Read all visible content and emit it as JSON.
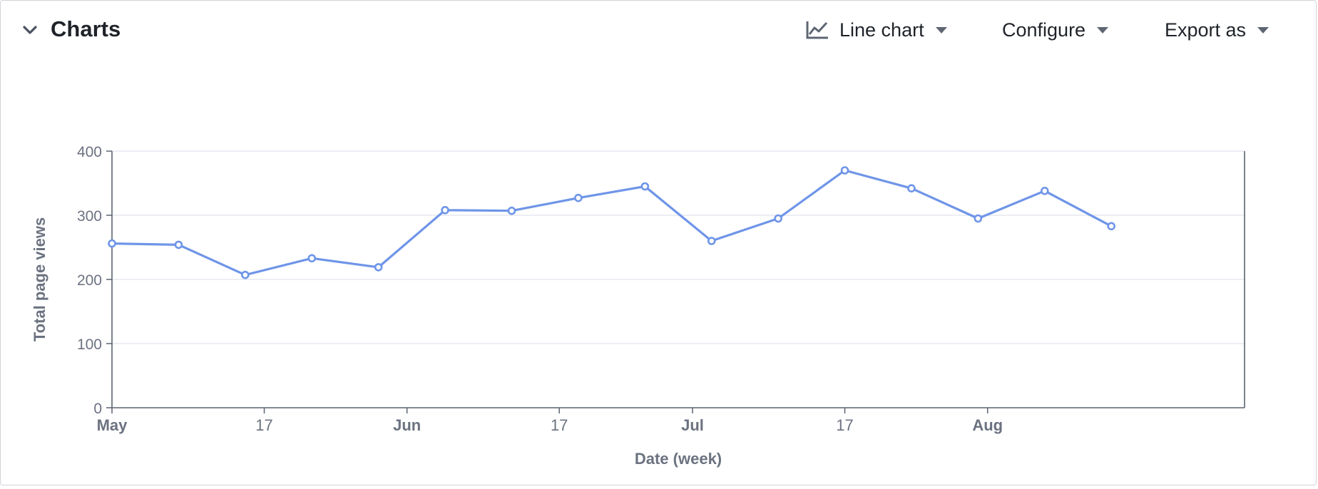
{
  "header": {
    "title": "Charts",
    "buttons": {
      "chart_type": "Line chart",
      "configure": "Configure",
      "export": "Export as"
    }
  },
  "colors": {
    "series": "#6f95e8",
    "grid": "#e1e4ee",
    "axis": "#5c6370",
    "tick_text": "#6b7280"
  },
  "icons": {
    "collapse": "chevron-down-icon",
    "chart_type": "line-chart-icon",
    "dropdown": "caret-down-icon"
  },
  "chart_data": {
    "type": "line",
    "title": "",
    "xlabel": "Date (week)",
    "ylabel": "Total page views",
    "ylim": [
      0,
      400
    ],
    "yticks": [
      0,
      100,
      200,
      300,
      400
    ],
    "xlim": [
      "2021-05-01",
      "2021-08-28"
    ],
    "xticks": [
      {
        "date": "2021-05-01",
        "label": "May",
        "bold": true
      },
      {
        "date": "2021-05-17",
        "label": "17",
        "bold": false
      },
      {
        "date": "2021-06-01",
        "label": "Jun",
        "bold": true
      },
      {
        "date": "2021-06-17",
        "label": "17",
        "bold": false
      },
      {
        "date": "2021-07-01",
        "label": "Jul",
        "bold": true
      },
      {
        "date": "2021-07-17",
        "label": "17",
        "bold": false
      },
      {
        "date": "2021-08-01",
        "label": "Aug",
        "bold": true
      }
    ],
    "grid": true,
    "series": [
      {
        "x": [
          "2021-05-01",
          "2021-05-08",
          "2021-05-15",
          "2021-05-22",
          "2021-05-29",
          "2021-06-05",
          "2021-06-12",
          "2021-06-19",
          "2021-06-26",
          "2021-07-03",
          "2021-07-10",
          "2021-07-17",
          "2021-07-24",
          "2021-07-31",
          "2021-08-07",
          "2021-08-14"
        ],
        "values": [
          256,
          254,
          207,
          233,
          219,
          308,
          307,
          327,
          345,
          260,
          295,
          370,
          342,
          295,
          338,
          283
        ]
      }
    ]
  }
}
